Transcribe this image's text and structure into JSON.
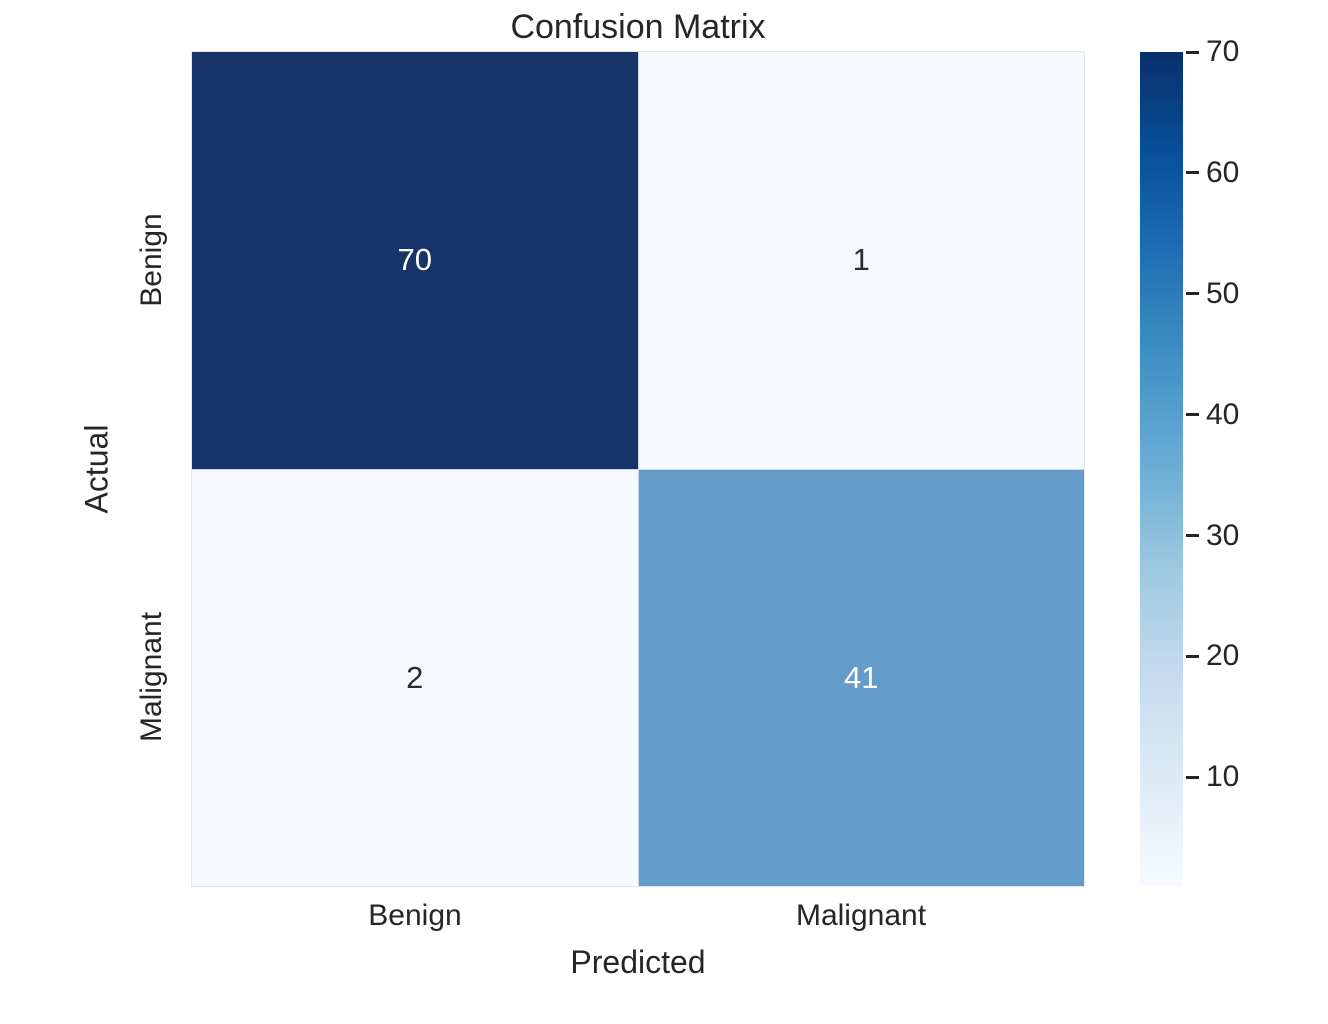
{
  "chart_data": {
    "type": "heatmap",
    "title": "Confusion Matrix",
    "xlabel": "Predicted",
    "ylabel": "Actual",
    "x_categories": [
      "Benign",
      "Malignant"
    ],
    "y_categories": [
      "Benign",
      "Malignant"
    ],
    "matrix": [
      [
        70,
        1
      ],
      [
        2,
        41
      ]
    ],
    "cells": [
      {
        "actual": "Benign",
        "predicted": "Benign",
        "value": 70,
        "bg": "#183368",
        "text_color": "#ffffff"
      },
      {
        "actual": "Benign",
        "predicted": "Malignant",
        "value": 1,
        "bg": "#f6f9fe",
        "text_color": "#2b2b2b"
      },
      {
        "actual": "Malignant",
        "predicted": "Benign",
        "value": 2,
        "bg": "#f6f9fe",
        "text_color": "#2b2b2b"
      },
      {
        "actual": "Malignant",
        "predicted": "Malignant",
        "value": 41,
        "bg": "#649bc8",
        "text_color": "#ffffff"
      }
    ],
    "colormap": "Blues",
    "vmin": 1,
    "vmax": 70,
    "colorbar_ticks": [
      70,
      60,
      50,
      40,
      30,
      20,
      10
    ],
    "colorbar_gradient_bottom_to_top": [
      "#f7fbff",
      "#deebf7",
      "#c6dbef",
      "#9ecae1",
      "#6baed6",
      "#4292c6",
      "#2171b5",
      "#08519c",
      "#08306b"
    ],
    "legend_position": "right-colorbar",
    "grid": false,
    "text_color": "#262626",
    "background_color": "#ffffff"
  }
}
